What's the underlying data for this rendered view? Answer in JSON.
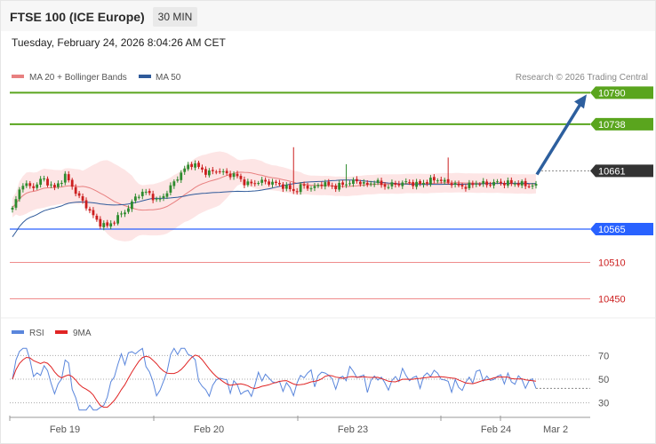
{
  "header": {
    "title": "FTSE 100 (ICE Europe)",
    "timeframe": "30 MIN"
  },
  "datetime": "Tuesday, February 24, 2026 8:04:26 AM CET",
  "legend": {
    "ma20": "MA 20 + Bollinger Bands",
    "ma50": "MA 50",
    "copyright": "Research © 2026 Trading Central"
  },
  "rsi_legend": {
    "rsi": "RSI",
    "ma9": "9MA"
  },
  "colors": {
    "up": "#2e8b2e",
    "down": "#cc1f1f",
    "ma50": "#2f5a9a",
    "ma20": "#e88080",
    "band": "#fcdcdc",
    "target": "#5aa51e",
    "support": "#2962ff",
    "support_weak": "#ef8c8c",
    "current": "#333333",
    "arrow": "#2d5f9e",
    "rsi": "#5a86dc",
    "rsi_ma": "#e02424"
  },
  "chart_data": [
    {
      "type": "candlestick",
      "title": "FTSE 100 (ICE Europe)",
      "timeframe": "30 MIN",
      "y_range": [
        10420,
        10830
      ],
      "x_labels": [
        "Feb 19",
        "Feb 20",
        "Feb 23",
        "Feb 24",
        "Mar 2"
      ],
      "levels": [
        {
          "value": 10790,
          "label": "10790",
          "kind": "target"
        },
        {
          "value": 10738,
          "label": "10738",
          "kind": "target"
        },
        {
          "value": 10661,
          "label": "10661",
          "kind": "current"
        },
        {
          "value": 10565,
          "label": "10565",
          "kind": "support"
        },
        {
          "value": 10510,
          "label": "10510",
          "kind": "support_weak"
        },
        {
          "value": 10450,
          "label": "10450",
          "kind": "support_weak"
        }
      ],
      "projection": {
        "from": 10655,
        "to": 10790
      },
      "series": [
        {
          "name": "MA 20 + Bollinger Bands"
        },
        {
          "name": "MA 50"
        }
      ]
    },
    {
      "type": "line",
      "series": [
        {
          "name": "RSI"
        },
        {
          "name": "9MA"
        }
      ],
      "y_ticks": [
        70,
        50,
        30
      ],
      "y_range": [
        20,
        80
      ]
    }
  ]
}
